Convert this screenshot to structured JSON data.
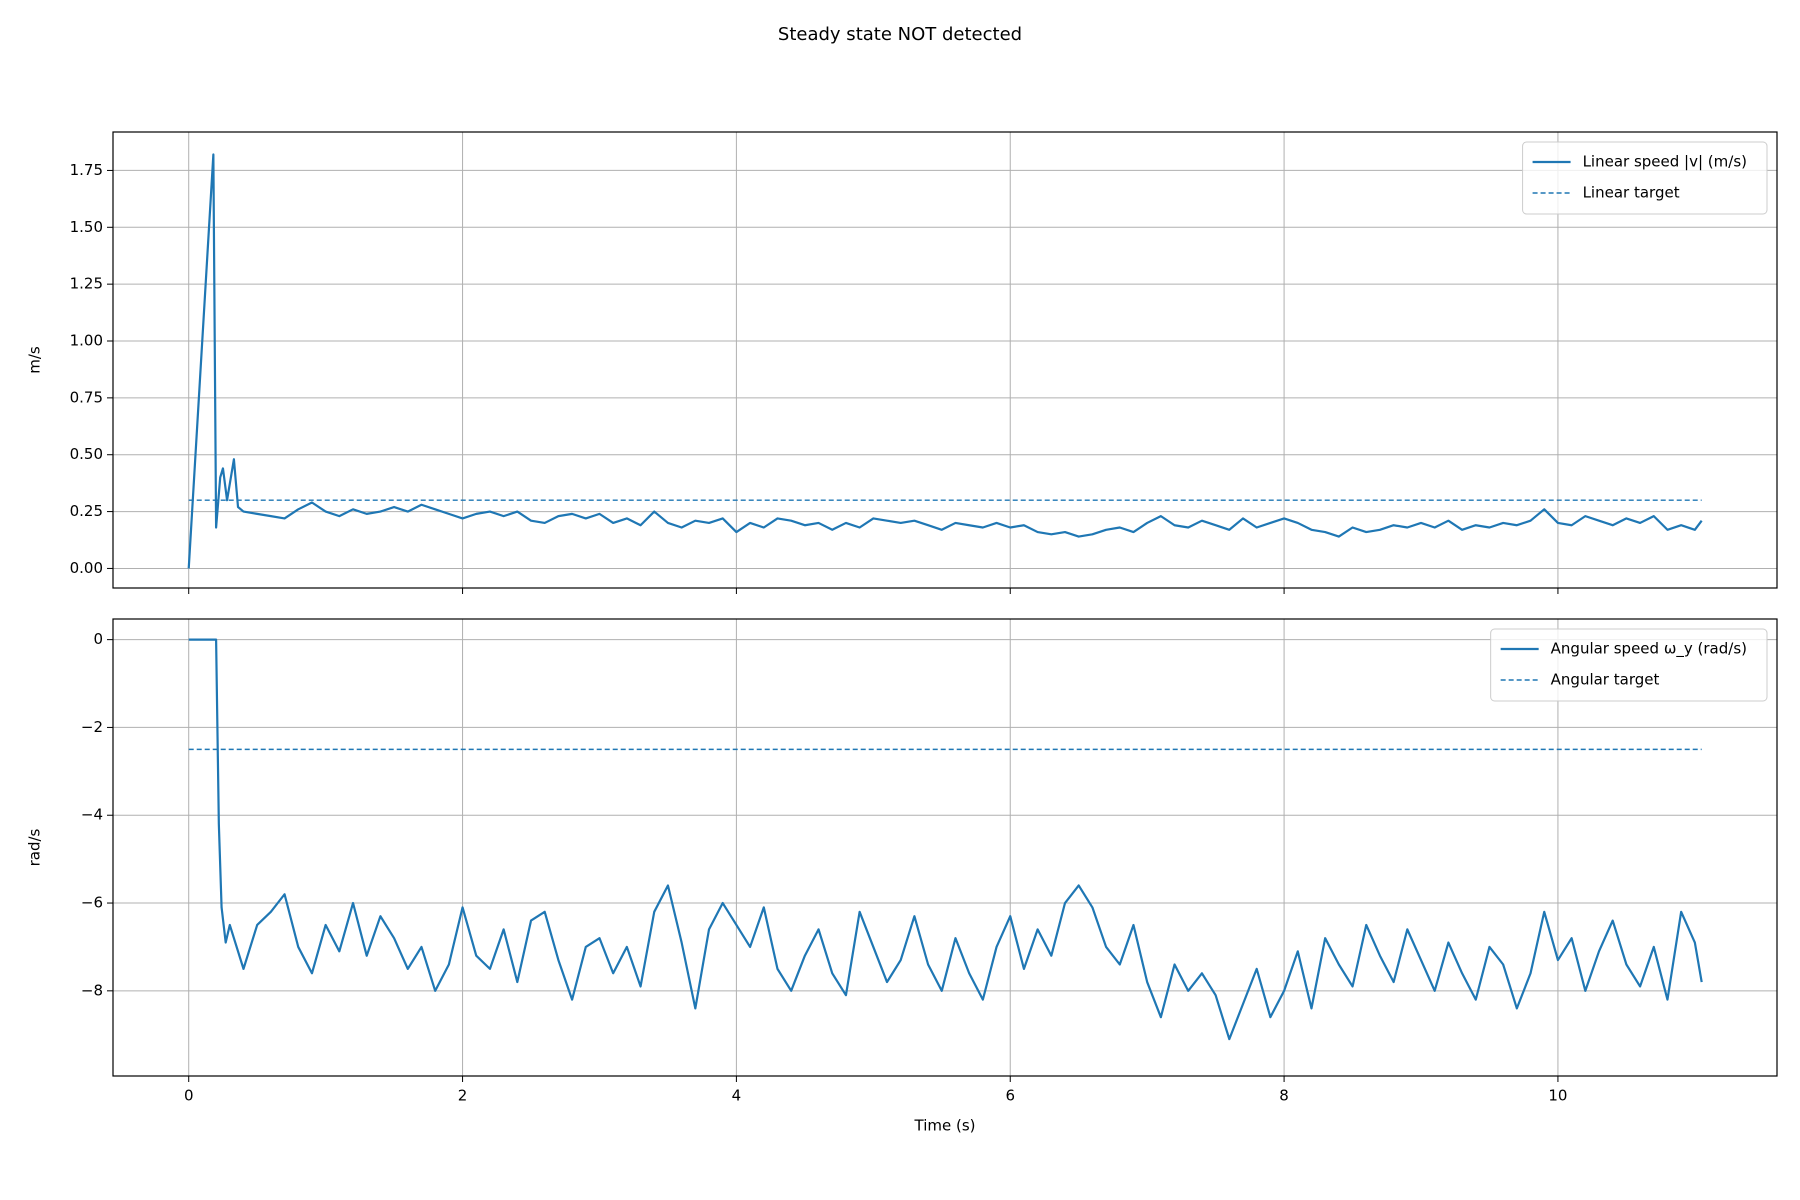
{
  "title": "Steady state NOT detected",
  "chart_data": [
    {
      "type": "line",
      "ylabel": "m/s",
      "legend": "upper right",
      "grid": true,
      "show_xtick_labels": false,
      "xlim": [
        -0.553,
        11.6
      ],
      "ylim": [
        -0.086,
        1.919
      ],
      "xticks": [
        0,
        2,
        4,
        6,
        8,
        10
      ],
      "yticks": [
        {
          "value": 0,
          "label": "0.00"
        },
        {
          "value": 0.25,
          "label": "0.25"
        },
        {
          "value": 0.5,
          "label": "0.50"
        },
        {
          "value": 0.75,
          "label": "0.75"
        },
        {
          "value": 1,
          "label": "1.00"
        },
        {
          "value": 1.25,
          "label": "1.25"
        },
        {
          "value": 1.5,
          "label": "1.50"
        },
        {
          "value": 1.75,
          "label": "1.75"
        }
      ],
      "x": [
        0,
        0.18,
        0.2,
        0.23,
        0.25,
        0.28,
        0.33,
        0.36,
        0.4,
        0.5,
        0.6,
        0.7,
        0.8,
        0.9,
        1.0,
        1.1,
        1.2,
        1.3,
        1.4,
        1.5,
        1.6,
        1.7,
        1.8,
        1.9,
        2.0,
        2.1,
        2.2,
        2.3,
        2.4,
        2.5,
        2.6,
        2.7,
        2.8,
        2.9,
        3.0,
        3.1,
        3.2,
        3.3,
        3.4,
        3.5,
        3.6,
        3.7,
        3.8,
        3.9,
        4.0,
        4.1,
        4.2,
        4.3,
        4.4,
        4.5,
        4.6,
        4.7,
        4.8,
        4.9,
        5.0,
        5.1,
        5.2,
        5.3,
        5.4,
        5.5,
        5.6,
        5.7,
        5.8,
        5.9,
        6.0,
        6.1,
        6.2,
        6.3,
        6.4,
        6.5,
        6.6,
        6.7,
        6.8,
        6.9,
        7.0,
        7.1,
        7.2,
        7.3,
        7.4,
        7.5,
        7.6,
        7.7,
        7.8,
        7.9,
        8.0,
        8.1,
        8.2,
        8.3,
        8.4,
        8.5,
        8.6,
        8.7,
        8.8,
        8.9,
        9.0,
        9.1,
        9.2,
        9.3,
        9.4,
        9.5,
        9.6,
        9.7,
        9.8,
        9.9,
        10.0,
        10.1,
        10.2,
        10.3,
        10.4,
        10.5,
        10.6,
        10.7,
        10.8,
        10.9,
        11.0,
        11.05
      ],
      "series": [
        {
          "name": "Linear speed |v| (m/s)",
          "color": "#1f77b4",
          "dash": false,
          "values": [
            0,
            1.82,
            0.18,
            0.4,
            0.44,
            0.3,
            0.48,
            0.27,
            0.25,
            0.24,
            0.23,
            0.22,
            0.26,
            0.29,
            0.25,
            0.23,
            0.26,
            0.24,
            0.25,
            0.27,
            0.25,
            0.28,
            0.26,
            0.24,
            0.22,
            0.24,
            0.25,
            0.23,
            0.25,
            0.21,
            0.2,
            0.23,
            0.24,
            0.22,
            0.24,
            0.2,
            0.22,
            0.19,
            0.25,
            0.2,
            0.18,
            0.21,
            0.2,
            0.22,
            0.16,
            0.2,
            0.18,
            0.22,
            0.21,
            0.19,
            0.2,
            0.17,
            0.2,
            0.18,
            0.22,
            0.21,
            0.2,
            0.21,
            0.19,
            0.17,
            0.2,
            0.19,
            0.18,
            0.2,
            0.18,
            0.19,
            0.16,
            0.15,
            0.16,
            0.14,
            0.15,
            0.17,
            0.18,
            0.16,
            0.2,
            0.23,
            0.19,
            0.18,
            0.21,
            0.19,
            0.17,
            0.22,
            0.18,
            0.2,
            0.22,
            0.2,
            0.17,
            0.16,
            0.14,
            0.18,
            0.16,
            0.17,
            0.19,
            0.18,
            0.2,
            0.18,
            0.21,
            0.17,
            0.19,
            0.18,
            0.2,
            0.19,
            0.21,
            0.26,
            0.2,
            0.19,
            0.23,
            0.21,
            0.19,
            0.22,
            0.2,
            0.23,
            0.17,
            0.19,
            0.17,
            0.21
          ]
        },
        {
          "name": "Linear target",
          "color": "#1f77b4",
          "dash": true,
          "x": [
            0,
            11.05
          ],
          "values": [
            0.3,
            0.3
          ]
        }
      ]
    },
    {
      "type": "line",
      "ylabel": "rad/s",
      "xlabel": "Time (s)",
      "legend": "upper right",
      "grid": true,
      "show_xtick_labels": true,
      "xlim": [
        -0.553,
        11.6
      ],
      "ylim": [
        -9.94,
        0.47
      ],
      "xticks": [
        0,
        2,
        4,
        6,
        8,
        10
      ],
      "yticks": [
        0,
        {
          "value": -2,
          "label": "−2"
        },
        {
          "value": -4,
          "label": "−4"
        },
        {
          "value": -6,
          "label": "−6"
        },
        {
          "value": -8,
          "label": "−8"
        }
      ],
      "x": [
        0,
        0.2,
        0.22,
        0.24,
        0.27,
        0.3,
        0.4,
        0.5,
        0.6,
        0.7,
        0.8,
        0.9,
        1.0,
        1.1,
        1.2,
        1.3,
        1.4,
        1.5,
        1.6,
        1.7,
        1.8,
        1.9,
        2.0,
        2.1,
        2.2,
        2.3,
        2.4,
        2.5,
        2.6,
        2.7,
        2.8,
        2.9,
        3.0,
        3.1,
        3.2,
        3.3,
        3.4,
        3.5,
        3.6,
        3.7,
        3.8,
        3.9,
        4.0,
        4.1,
        4.2,
        4.3,
        4.4,
        4.5,
        4.6,
        4.7,
        4.8,
        4.9,
        5.0,
        5.1,
        5.2,
        5.3,
        5.4,
        5.5,
        5.6,
        5.7,
        5.8,
        5.9,
        6.0,
        6.1,
        6.2,
        6.3,
        6.4,
        6.5,
        6.6,
        6.7,
        6.8,
        6.9,
        7.0,
        7.1,
        7.2,
        7.3,
        7.4,
        7.5,
        7.6,
        7.7,
        7.8,
        7.9,
        8.0,
        8.1,
        8.2,
        8.3,
        8.4,
        8.5,
        8.6,
        8.7,
        8.8,
        8.9,
        9.0,
        9.1,
        9.2,
        9.3,
        9.4,
        9.5,
        9.6,
        9.7,
        9.8,
        9.9,
        10.0,
        10.1,
        10.2,
        10.3,
        10.4,
        10.5,
        10.6,
        10.7,
        10.8,
        10.9,
        11.0,
        11.05
      ],
      "series": [
        {
          "name": "Angular speed ω_y (rad/s)",
          "color": "#1f77b4",
          "dash": false,
          "values": [
            0,
            0,
            -4.2,
            -6.1,
            -6.9,
            -6.5,
            -7.5,
            -6.5,
            -6.2,
            -5.8,
            -7.0,
            -7.6,
            -6.5,
            -7.1,
            -6.0,
            -7.2,
            -6.3,
            -6.8,
            -7.5,
            -7.0,
            -8.0,
            -7.4,
            -6.1,
            -7.2,
            -7.5,
            -6.6,
            -7.8,
            -6.4,
            -6.2,
            -7.3,
            -8.2,
            -7.0,
            -6.8,
            -7.6,
            -7.0,
            -7.9,
            -6.2,
            -5.6,
            -6.9,
            -8.4,
            -6.6,
            -6.0,
            -6.5,
            -7.0,
            -6.1,
            -7.5,
            -8.0,
            -7.2,
            -6.6,
            -7.6,
            -8.1,
            -6.2,
            -7.0,
            -7.8,
            -7.3,
            -6.3,
            -7.4,
            -8.0,
            -6.8,
            -7.6,
            -8.2,
            -7.0,
            -6.3,
            -7.5,
            -6.6,
            -7.2,
            -6.0,
            -5.6,
            -6.1,
            -7.0,
            -7.4,
            -6.5,
            -7.8,
            -8.6,
            -7.4,
            -8.0,
            -7.6,
            -8.1,
            -9.1,
            -8.3,
            -7.5,
            -8.6,
            -8.0,
            -7.1,
            -8.4,
            -6.8,
            -7.4,
            -7.9,
            -6.5,
            -7.2,
            -7.8,
            -6.6,
            -7.3,
            -8.0,
            -6.9,
            -7.6,
            -8.2,
            -7.0,
            -7.4,
            -8.4,
            -7.6,
            -6.2,
            -7.3,
            -6.8,
            -8.0,
            -7.1,
            -6.4,
            -7.4,
            -7.9,
            -7.0,
            -8.2,
            -6.2,
            -6.9,
            -7.8
          ]
        },
        {
          "name": "Angular target",
          "color": "#1f77b4",
          "dash": true,
          "x": [
            0,
            11.05
          ],
          "values": [
            -2.5,
            -2.5
          ]
        }
      ]
    }
  ]
}
